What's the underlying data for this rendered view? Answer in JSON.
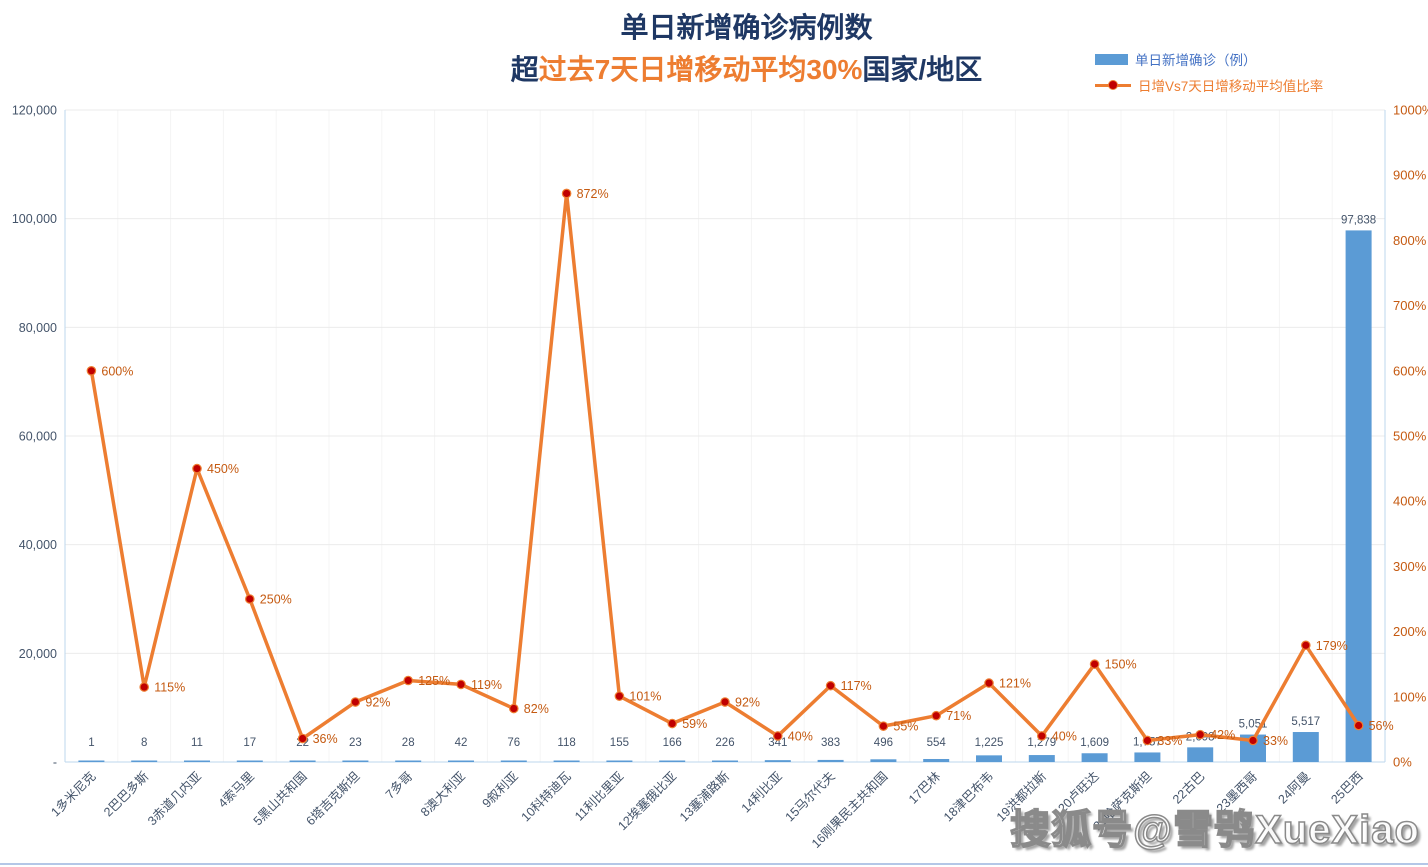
{
  "title": {
    "line1": "单日新增确诊病例数",
    "line2_prefix": "超",
    "line2_highlight": "过去7天日增移动平均30%",
    "line2_suffix": "国家/地区"
  },
  "legend": {
    "bar_label": "单日新增确诊（例）",
    "line_label": "日增Vs7天日增移动平均值比率"
  },
  "watermark": "搜狐号@雪鸮XueXiao",
  "colors": {
    "bar": "#5B9BD5",
    "line": "#ED7D31",
    "marker_fill": "#C00000",
    "marker_ring": "#ED7D31",
    "bar_label": "#44546A",
    "axis_label_left": "#44546A",
    "axis_label_right": "#C55A11",
    "percent_label": "#C55A11",
    "x_label": "#44546A",
    "grid_h": "#EBEBEB",
    "grid_v": "#F4F4F4",
    "axis_line": "#BDD7EE",
    "title": "#1F3864",
    "highlight": "#ED7D31"
  },
  "chart_data": {
    "type": "bar+line combo",
    "title": "单日新增确诊病例数 超过去7天日增移动平均30%国家/地区",
    "categories": [
      "1多米尼克",
      "2巴巴多斯",
      "3赤道几内亚",
      "4索马里",
      "5黑山共和国",
      "6塔吉克斯坦",
      "7多哥",
      "8澳大利亚",
      "9叙利亚",
      "10科特迪瓦",
      "11利比里亚",
      "12埃塞俄比亚",
      "13塞浦路斯",
      "14利比亚",
      "15马尔代夫",
      "16刚果民主共和国",
      "17巴林",
      "18津巴布韦",
      "19洪都拉斯",
      "20卢旺达",
      "21哈萨克斯坦",
      "22古巴",
      "23墨西哥",
      "24阿曼",
      "25巴西"
    ],
    "series": [
      {
        "name": "单日新增确诊（例）",
        "type": "bar",
        "axis": "left",
        "values": [
          1,
          8,
          11,
          17,
          22,
          23,
          28,
          42,
          76,
          118,
          155,
          166,
          226,
          341,
          383,
          496,
          554,
          1225,
          1279,
          1609,
          1757,
          2698,
          5051,
          5517,
          97838
        ],
        "labels": [
          "1",
          "8",
          "11",
          "17",
          "22",
          "23",
          "28",
          "42",
          "76",
          "118",
          "155",
          "166",
          "226",
          "341",
          "383",
          "496",
          "554",
          "1,225",
          "1,279",
          "1,609",
          "1,757",
          "2,698",
          "5,051",
          "5,517",
          "97,838"
        ]
      },
      {
        "name": "日增Vs7天日增移动平均值比率",
        "type": "line",
        "axis": "right",
        "values": [
          600,
          115,
          450,
          250,
          36,
          92,
          125,
          119,
          82,
          872,
          101,
          59,
          92,
          40,
          117,
          55,
          71,
          121,
          40,
          150,
          33,
          42,
          33,
          179,
          56
        ],
        "labels": [
          "600%",
          "115%",
          "450%",
          "250%",
          "36%",
          "92%",
          "125%",
          "119%",
          "82%",
          "872%",
          "101%",
          "59%",
          "92%",
          "40%",
          "117%",
          "55%",
          "71%",
          "121%",
          "40%",
          "150%",
          "33%",
          "42%",
          "33%",
          "179%",
          "56%"
        ]
      }
    ],
    "left_axis": {
      "min": 0,
      "max": 120000,
      "step": 20000,
      "ticks_top_down": [
        "120,000",
        "100,000",
        "80,000",
        "60,000",
        "40,000",
        "20,000",
        "-"
      ]
    },
    "right_axis": {
      "min": 0,
      "max": 1000,
      "step": 100,
      "ticks_top_down": [
        "1000%",
        "900%",
        "800%",
        "700%",
        "600%",
        "500%",
        "400%",
        "300%",
        "200%",
        "100%",
        "0%"
      ]
    },
    "grid": "horizontal major + faint vertical category lines",
    "legend_position": "top-right"
  }
}
